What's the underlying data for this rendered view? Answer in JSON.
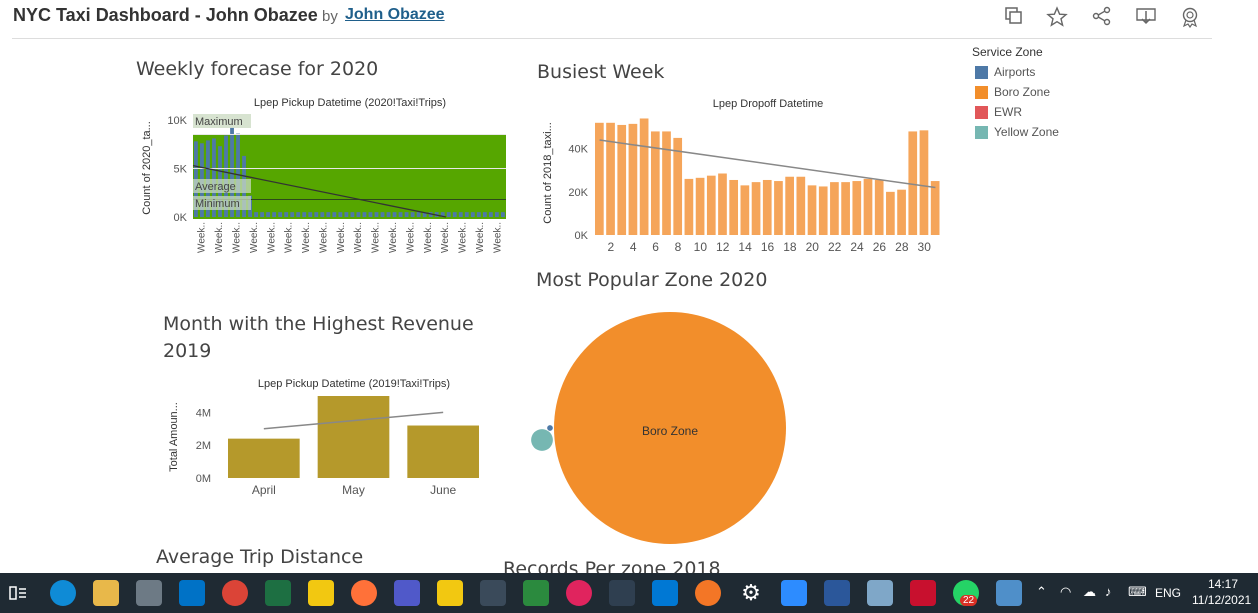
{
  "header": {
    "title": "NYC Taxi Dashboard - John Obazee",
    "by": "by",
    "author": "John Obazee",
    "icons": [
      "duplicate-icon",
      "star-icon",
      "share-icon",
      "download-icon",
      "badge-icon"
    ]
  },
  "legend": {
    "title": "Service Zone",
    "items": [
      {
        "label": "Airports",
        "color": "#4e79a7"
      },
      {
        "label": "Boro Zone",
        "color": "#f28e2b"
      },
      {
        "label": "EWR",
        "color": "#e15759"
      },
      {
        "label": "Yellow Zone",
        "color": "#76b7b2"
      }
    ]
  },
  "sheets": {
    "weekly_title": "Weekly forecase for 2020",
    "busiest_title": "Busiest Week",
    "popular_title": "Most Popular Zone 2020",
    "revenue_title_line1": "Month with the Highest Revenue",
    "revenue_title_line2": "2019",
    "avg_trip_title": "Average Trip Distance",
    "records_title": "Records Per zone 2018"
  },
  "taskbar": {
    "time": "14:17",
    "date": "11/12/2021",
    "lang": "ENG",
    "whatsapp_badge": "22"
  },
  "chart_data": [
    {
      "id": "weekly",
      "type": "bar",
      "title": "Lpep Pickup Datetime (2020!Taxi!Trips)",
      "ylabel": "Count of 2020_ta...",
      "ylim": [
        0,
        10000
      ],
      "yticks": [
        "10K",
        "5K",
        "0K"
      ],
      "x_tick_label": "Week..",
      "x_tick_count": 18,
      "values": [
        7800,
        7600,
        7900,
        8100,
        7300,
        8400,
        9200,
        8600,
        6300,
        2200,
        500,
        500,
        500,
        500,
        500,
        500,
        500,
        500,
        500,
        500,
        500,
        500,
        500,
        500,
        500,
        500,
        500,
        500,
        500,
        500,
        500,
        500,
        500,
        500,
        500,
        500,
        500,
        500,
        500,
        500,
        500,
        500,
        500,
        500,
        500,
        500,
        500,
        500,
        500,
        500,
        500,
        500
      ],
      "reference_lines": {
        "maximum_label": "Maximum",
        "average_label": "Average",
        "minimum_label": "Minimum"
      },
      "band_color": "#56a600",
      "bar_color": "#4e79a7",
      "trend": [
        5300,
        0
      ]
    },
    {
      "id": "busiest",
      "type": "bar",
      "title": "Lpep Dropoff Datetime",
      "ylabel": "Count of 2018_taxi...",
      "ylim": [
        0,
        57000
      ],
      "yticks": [
        {
          "label": "40K",
          "v": 40000
        },
        {
          "label": "20K",
          "v": 20000
        },
        {
          "label": "0K",
          "v": 0
        }
      ],
      "x": [
        1,
        2,
        3,
        4,
        5,
        6,
        7,
        8,
        9,
        10,
        11,
        12,
        13,
        14,
        15,
        16,
        17,
        18,
        19,
        20,
        21,
        22,
        23,
        24,
        25,
        26,
        27,
        28,
        29,
        30,
        31
      ],
      "x_tick_labels": [
        "2",
        "4",
        "6",
        "8",
        "10",
        "12",
        "14",
        "16",
        "18",
        "20",
        "22",
        "24",
        "26",
        "28",
        "30"
      ],
      "values": [
        52000,
        52000,
        51000,
        51500,
        54000,
        48000,
        48000,
        45000,
        26000,
        26500,
        27500,
        28500,
        25500,
        23000,
        24500,
        25500,
        25000,
        27000,
        27000,
        23000,
        22500,
        24500,
        24500,
        25000,
        26000,
        25500,
        20000,
        21000,
        48000,
        48500,
        25000
      ],
      "bar_color": "#f5a55a",
      "trend": [
        44000,
        22000
      ]
    },
    {
      "id": "revenue",
      "type": "bar",
      "title": "Lpep Pickup Datetime (2019!Taxi!Trips)",
      "ylabel": "Total Amoun...",
      "ylim": [
        0,
        5000000
      ],
      "yticks": [
        {
          "label": "4M",
          "v": 4000000
        },
        {
          "label": "2M",
          "v": 2000000
        },
        {
          "label": "0M",
          "v": 0
        }
      ],
      "categories": [
        "April",
        "May",
        "June"
      ],
      "values": [
        2400000,
        5000000,
        3200000
      ],
      "bar_color": "#b5992b",
      "trend": [
        3000000,
        4000000
      ]
    },
    {
      "id": "popular",
      "type": "bubble",
      "bubbles": [
        {
          "label": "Boro Zone",
          "color": "#f28e2b",
          "size": 1
        },
        {
          "label": "",
          "color": "#76b7b2",
          "size": 0.0088
        },
        {
          "label": "",
          "color": "#4e79a7",
          "size": 0.0006
        }
      ]
    }
  ]
}
